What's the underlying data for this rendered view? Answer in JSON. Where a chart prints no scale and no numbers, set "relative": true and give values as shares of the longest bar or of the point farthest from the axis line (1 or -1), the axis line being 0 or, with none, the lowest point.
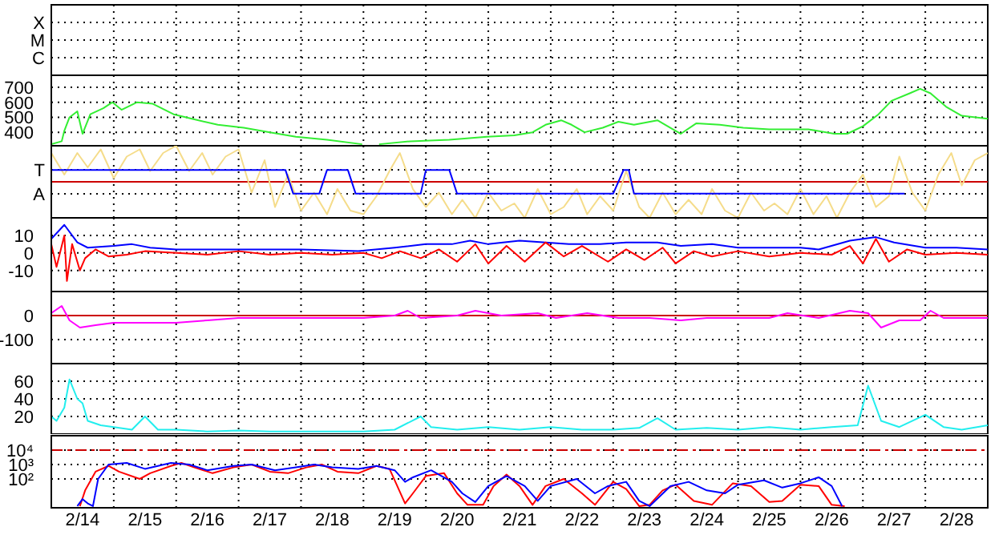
{
  "chart_data": [
    {
      "type": "other",
      "annotations": [
        "X",
        "M",
        "C"
      ]
    },
    {
      "type": "line",
      "xlim": [
        "--02-14",
        "--03-01"
      ],
      "xticks": [
        {
          "value": "--02-14T12:00",
          "label": "2/14"
        },
        {
          "value": "--02-15",
          "label": null
        },
        {
          "value": "--02-15T12:00",
          "label": "2/15"
        },
        {
          "value": "--02-16",
          "label": null
        },
        {
          "value": "--02-16T12:00",
          "label": "2/16"
        },
        {
          "value": "--02-17",
          "label": null
        },
        {
          "value": "--02-17T12:00",
          "label": "2/17"
        },
        {
          "value": "--02-18",
          "label": null
        },
        {
          "value": "--02-18T12:00",
          "label": "2/18"
        },
        {
          "value": "--02-19",
          "label": null
        },
        {
          "value": "--02-19T12:00",
          "label": "2/19"
        },
        {
          "value": "--02-20",
          "label": null
        },
        {
          "value": "--02-20T12:00",
          "label": "2/20"
        },
        {
          "value": "--02-21",
          "label": null
        },
        {
          "value": "--02-21T12:00",
          "label": "2/21"
        },
        {
          "value": "--02-22",
          "label": null
        },
        {
          "value": "--02-22T12:00",
          "label": "2/22"
        },
        {
          "value": "--02-23",
          "label": null
        },
        {
          "value": "--02-23T12:00",
          "label": "2/23"
        },
        {
          "value": "--02-24",
          "label": null
        },
        {
          "value": "--02-24T12:00",
          "label": "2/24"
        },
        {
          "value": "--02-25",
          "label": null
        },
        {
          "value": "--02-25T12:00",
          "label": "2/25"
        },
        {
          "value": "--02-26",
          "label": null
        },
        {
          "value": "--02-26T12:00",
          "label": "2/26"
        },
        {
          "value": "--02-27",
          "label": null
        },
        {
          "value": "--02-27T12:00",
          "label": "2/27"
        },
        {
          "value": "--02-28",
          "label": null
        },
        {
          "value": "--02-28T12:00",
          "label": "2/28"
        }
      ],
      "ylim": [
        310,
        780
      ],
      "yticks": [
        400,
        500,
        600,
        700
      ],
      "grid": true,
      "tick_labels": "y",
      "marker": "none",
      "series": [
        {
          "color": "#33ee33",
          "x": [
            "--02-14T00:00",
            "--02-14T04:00",
            "--02-14T05:00",
            "--02-14T07:00",
            "--02-14T10:00",
            "--02-14T12:00",
            "--02-14T15:00",
            "--02-14T20:00",
            "--02-14T23:30",
            "--02-15T03:00",
            "--02-15T09:00",
            "--02-15T15:00",
            "--02-15T23:00",
            "--02-16T06:00",
            "--02-16T16:00",
            "--02-17T02:00",
            "--02-17T12:00",
            "--02-17T22:00",
            "--02-18T10:00",
            "--02-18T23:30",
            "--02-19T02:00",
            "--02-19T06:00",
            "--02-19T18:00",
            "--02-20T09:00",
            "--02-20T23:30",
            "--02-21T10:00",
            "--02-21T17:00",
            "--02-21T22:00",
            "--02-22T04:00",
            "--02-22T08:00",
            "--02-22T13:00",
            "--02-22T20:00",
            "--02-23T02:00",
            "--02-23T08:00",
            "--02-23T17:00",
            "--02-23T22:00",
            "--02-24T02:00",
            "--02-24T08:00",
            "--02-24T17:00",
            "--02-25T02:00",
            "--02-25T12:00",
            "--02-26T03:00",
            "--02-26T13:00",
            "--02-26T18:00",
            "--02-27T00:00",
            "--02-27T06:00",
            "--02-27T11:00",
            "--02-27T18:00",
            "--02-27T22:00",
            "--02-28T02:00",
            "--02-28T08:00",
            "--02-28T14:00",
            "--03-01T00:00"
          ],
          "values": [
            320,
            340,
            410,
            500,
            540,
            390,
            520,
            560,
            600,
            550,
            600,
            590,
            520,
            490,
            450,
            430,
            400,
            370,
            350,
            320,
            null,
            320,
            340,
            350,
            370,
            380,
            400,
            450,
            480,
            450,
            400,
            430,
            470,
            450,
            480,
            430,
            390,
            460,
            450,
            430,
            420,
            420,
            390,
            390,
            440,
            520,
            610,
            660,
            690,
            660,
            570,
            510,
            490
          ]
        }
      ]
    },
    {
      "type": "line",
      "relative": true,
      "xlim": [
        "--02-14",
        "--03-01"
      ],
      "xticks": [
        {
          "value": "--02-14T12:00",
          "label": "2/14"
        },
        {
          "value": "--02-15",
          "label": null
        },
        {
          "value": "--02-15T12:00",
          "label": "2/15"
        },
        {
          "value": "--02-16",
          "label": null
        },
        {
          "value": "--02-16T12:00",
          "label": "2/16"
        },
        {
          "value": "--02-17",
          "label": null
        },
        {
          "value": "--02-17T12:00",
          "label": "2/17"
        },
        {
          "value": "--02-18",
          "label": null
        },
        {
          "value": "--02-18T12:00",
          "label": "2/18"
        },
        {
          "value": "--02-19",
          "label": null
        },
        {
          "value": "--02-19T12:00",
          "label": "2/19"
        },
        {
          "value": "--02-20",
          "label": null
        },
        {
          "value": "--02-20T12:00",
          "label": "2/20"
        },
        {
          "value": "--02-21",
          "label": null
        },
        {
          "value": "--02-21T12:00",
          "label": "2/21"
        },
        {
          "value": "--02-22",
          "label": null
        },
        {
          "value": "--02-22T12:00",
          "label": "2/22"
        },
        {
          "value": "--02-23",
          "label": null
        },
        {
          "value": "--02-23T12:00",
          "label": "2/23"
        },
        {
          "value": "--02-24",
          "label": null
        },
        {
          "value": "--02-24T12:00",
          "label": "2/24"
        },
        {
          "value": "--02-25",
          "label": null
        },
        {
          "value": "--02-25T12:00",
          "label": "2/25"
        },
        {
          "value": "--02-26",
          "label": null
        },
        {
          "value": "--02-26T12:00",
          "label": "2/26"
        },
        {
          "value": "--02-27",
          "label": null
        },
        {
          "value": "--02-27T12:00",
          "label": "2/27"
        },
        {
          "value": "--02-28",
          "label": null
        },
        {
          "value": "--02-28T12:00",
          "label": "2/28"
        }
      ],
      "grid": true,
      "tick_labels": false,
      "marker": "none",
      "annotations": [
        "T",
        "A"
      ],
      "ref_lines": [
        {
          "axis": "y",
          "value": 0,
          "color": "#cc0000"
        }
      ],
      "series": [
        {
          "color": "#f5dc8a",
          "x": [
            "--02-14T00:00",
            "--02-14T05:00",
            "--02-14T10:00",
            "--02-14T14:00",
            "--02-14T19:00",
            "--02-15T00:00",
            "--02-15T05:00",
            "--02-15T10:00",
            "--02-15T14:00",
            "--02-15T19:00",
            "--02-16T00:00",
            "--02-16T05:00",
            "--02-16T10:00",
            "--02-16T14:00",
            "--02-16T19:00",
            "--02-17T00:00",
            "--02-17T05:00",
            "--02-17T10:00",
            "--02-17T14:00",
            "--02-17T19:00",
            "--02-18T00:00",
            "--02-18T05:00",
            "--02-18T10:00",
            "--02-18T14:00",
            "--02-18T19:00",
            "--02-19T00:00",
            "--02-19T05:00",
            "--02-19T10:00",
            "--02-19T14:00",
            "--02-19T19:00",
            "--02-20T00:00",
            "--02-20T05:00",
            "--02-20T10:00",
            "--02-20T14:00",
            "--02-20T19:00",
            "--02-21T00:00",
            "--02-21T05:00",
            "--02-21T10:00",
            "--02-21T14:00",
            "--02-21T19:00",
            "--02-22T00:00",
            "--02-22T05:00",
            "--02-22T10:00",
            "--02-22T14:00",
            "--02-22T19:00",
            "--02-23T00:00",
            "--02-23T05:00",
            "--02-23T10:00",
            "--02-23T14:00",
            "--02-23T19:00",
            "--02-24T00:00",
            "--02-24T05:00",
            "--02-24T10:00",
            "--02-24T14:00",
            "--02-24T19:00",
            "--02-25T00:00",
            "--02-25T05:00",
            "--02-25T10:00",
            "--02-25T14:00",
            "--02-25T19:00",
            "--02-26T00:00",
            "--02-26T05:00",
            "--02-26T10:00",
            "--02-26T14:00",
            "--02-26T19:00",
            "--02-27T00:00",
            "--02-27T05:00",
            "--02-27T10:00",
            "--02-27T14:00",
            "--02-27T19:00",
            "--02-28T00:00",
            "--02-28T05:00",
            "--02-28T10:00",
            "--02-28T14:00",
            "--02-28T19:00",
            "--03-01T00:00"
          ],
          "values": [
            0.8,
            0.2,
            0.8,
            0.4,
            0.9,
            0.1,
            0.7,
            0.9,
            0.3,
            0.8,
            1,
            0.3,
            0.8,
            0.2,
            0.7,
            0.9,
            -0.3,
            0.6,
            -0.7,
            0.2,
            -0.8,
            -0.3,
            -0.9,
            -0.2,
            -0.8,
            -0.9,
            -0.4,
            0.3,
            0.8,
            -0.2,
            -0.7,
            -0.3,
            -0.9,
            -0.5,
            -1,
            -0.3,
            -0.8,
            -0.6,
            -1,
            -0.2,
            -0.9,
            -0.7,
            -0.2,
            -0.9,
            -0.4,
            -0.8,
            0.3,
            -0.7,
            -1,
            -0.3,
            -0.9,
            -0.5,
            -0.9,
            -0.2,
            -0.8,
            -1,
            -0.3,
            -0.8,
            -0.6,
            -0.9,
            -0.2,
            -0.9,
            -0.4,
            -1,
            -0.3,
            0.2,
            -0.7,
            -0.4,
            0.7,
            -0.3,
            -0.8,
            0.2,
            0.8,
            -0.1,
            0.6,
            0.8
          ]
        },
        {
          "color": "#0000ff",
          "x": [
            "--02-14T00:00",
            "--02-17T18:00",
            "--02-17T21:00",
            "--02-18T07:00",
            "--02-18T10:00",
            "--02-18T18:00",
            "--02-18T21:00",
            "--02-19T22:00",
            "--02-20T00:00",
            "--02-20T09:00",
            "--02-20T12:00",
            "--02-23T00:00",
            "--02-23T04:00",
            "--02-23T06:00",
            "--02-23T08:00",
            "--02-27T16:00"
          ],
          "values": [
            0.33,
            0.33,
            -0.33,
            -0.33,
            0.33,
            0.33,
            -0.33,
            -0.33,
            0.33,
            0.33,
            -0.33,
            -0.33,
            0.33,
            0.33,
            -0.33,
            -0.33
          ]
        }
      ]
    },
    {
      "type": "line",
      "xlim": [
        "--02-14",
        "--03-01"
      ],
      "xticks": [
        {
          "value": "--02-14T12:00",
          "label": "2/14"
        },
        {
          "value": "--02-15",
          "label": null
        },
        {
          "value": "--02-15T12:00",
          "label": "2/15"
        },
        {
          "value": "--02-16",
          "label": null
        },
        {
          "value": "--02-16T12:00",
          "label": "2/16"
        },
        {
          "value": "--02-17",
          "label": null
        },
        {
          "value": "--02-17T12:00",
          "label": "2/17"
        },
        {
          "value": "--02-18",
          "label": null
        },
        {
          "value": "--02-18T12:00",
          "label": "2/18"
        },
        {
          "value": "--02-19",
          "label": null
        },
        {
          "value": "--02-19T12:00",
          "label": "2/19"
        },
        {
          "value": "--02-20",
          "label": null
        },
        {
          "value": "--02-20T12:00",
          "label": "2/20"
        },
        {
          "value": "--02-21",
          "label": null
        },
        {
          "value": "--02-21T12:00",
          "label": "2/21"
        },
        {
          "value": "--02-22",
          "label": null
        },
        {
          "value": "--02-22T12:00",
          "label": "2/22"
        },
        {
          "value": "--02-23",
          "label": null
        },
        {
          "value": "--02-23T12:00",
          "label": "2/23"
        },
        {
          "value": "--02-24",
          "label": null
        },
        {
          "value": "--02-24T12:00",
          "label": "2/24"
        },
        {
          "value": "--02-25",
          "label": null
        },
        {
          "value": "--02-25T12:00",
          "label": "2/25"
        },
        {
          "value": "--02-26",
          "label": null
        },
        {
          "value": "--02-26T12:00",
          "label": "2/26"
        },
        {
          "value": "--02-27",
          "label": null
        },
        {
          "value": "--02-27T12:00",
          "label": "2/27"
        },
        {
          "value": "--02-28",
          "label": null
        },
        {
          "value": "--02-28T12:00",
          "label": "2/28"
        }
      ],
      "ylim": [
        -22,
        20
      ],
      "yticks": [
        -10,
        0,
        10
      ],
      "grid": true,
      "tick_labels": "y",
      "marker": "none",
      "series": [
        {
          "color": "#0000ff",
          "x": [
            "--02-14T00:00",
            "--02-14T05:00",
            "--02-14T10:00",
            "--02-14T14:00",
            "--02-15T00:00",
            "--02-15T07:00",
            "--02-15T14:00",
            "--02-16T00:00",
            "--02-17T00:00",
            "--02-18T00:00",
            "--02-18T22:00",
            "--02-19T12:00",
            "--02-20T00:00",
            "--02-20T10:00",
            "--02-20T17:00",
            "--02-21T00:00",
            "--02-21T12:00",
            "--02-21T22:00",
            "--02-22T07:00",
            "--02-22T19:00",
            "--02-23T05:00",
            "--02-23T17:00",
            "--02-24T02:00",
            "--02-24T14:00",
            "--02-25T00:00",
            "--02-25T12:00",
            "--02-26T00:00",
            "--02-26T07:00",
            "--02-26T19:00",
            "--02-27T05:00",
            "--02-27T12:00",
            "--02-28T00:00",
            "--02-28T12:00",
            "--03-01T00:00"
          ],
          "values": [
            8,
            16,
            6,
            3,
            4,
            5,
            3,
            2,
            2,
            2,
            1,
            3,
            5,
            5,
            7,
            5,
            7,
            6,
            5,
            5,
            6,
            6,
            4,
            5,
            3,
            3,
            3,
            2,
            7,
            9,
            6,
            3,
            3,
            2
          ]
        },
        {
          "color": "#ff0000",
          "x": [
            "--02-14T00:00",
            "--02-14T02:00",
            "--02-14T05:00",
            "--02-14T06:00",
            "--02-14T08:00",
            "--02-14T11:00",
            "--02-14T13:00",
            "--02-14T17:00",
            "--02-14T22:00",
            "--02-15T05:00",
            "--02-15T12:00",
            "--02-16T00:00",
            "--02-16T12:00",
            "--02-17T00:00",
            "--02-17T12:00",
            "--02-18T00:00",
            "--02-18T12:00",
            "--02-19T00:00",
            "--02-19T07:00",
            "--02-19T14:00",
            "--02-19T22:00",
            "--02-20T05:00",
            "--02-20T12:00",
            "--02-20T19:00",
            "--02-21T00:00",
            "--02-21T07:00",
            "--02-21T14:00",
            "--02-21T22:00",
            "--02-22T05:00",
            "--02-22T12:00",
            "--02-22T22:00",
            "--02-23T05:00",
            "--02-23T12:00",
            "--02-23T19:00",
            "--02-24T00:00",
            "--02-24T07:00",
            "--02-24T14:00",
            "--02-25T00:00",
            "--02-25T12:00",
            "--02-26T00:00",
            "--02-26T12:00",
            "--02-26T19:00",
            "--02-27T00:00",
            "--02-27T05:00",
            "--02-27T10:00",
            "--02-27T17:00",
            "--02-28T00:00",
            "--02-28T12:00",
            "--03-01T00:00"
          ],
          "values": [
            5,
            -8,
            10,
            -16,
            5,
            -10,
            -3,
            2,
            -2,
            -1,
            1,
            0,
            -1,
            1,
            -1,
            0,
            -1,
            0,
            -3,
            1,
            -3,
            2,
            -5,
            5,
            -6,
            4,
            -5,
            6,
            -2,
            4,
            -5,
            2,
            -4,
            3,
            -6,
            1,
            -2,
            1,
            -2,
            0,
            -1,
            4,
            -6,
            8,
            -5,
            2,
            -1,
            0,
            -1
          ]
        }
      ]
    },
    {
      "type": "line",
      "xlim": [
        "--02-14",
        "--03-01"
      ],
      "xticks": [
        {
          "value": "--02-14T12:00",
          "label": "2/14"
        },
        {
          "value": "--02-15",
          "label": null
        },
        {
          "value": "--02-15T12:00",
          "label": "2/15"
        },
        {
          "value": "--02-16",
          "label": null
        },
        {
          "value": "--02-16T12:00",
          "label": "2/16"
        },
        {
          "value": "--02-17",
          "label": null
        },
        {
          "value": "--02-17T12:00",
          "label": "2/17"
        },
        {
          "value": "--02-18",
          "label": null
        },
        {
          "value": "--02-18T12:00",
          "label": "2/18"
        },
        {
          "value": "--02-19",
          "label": null
        },
        {
          "value": "--02-19T12:00",
          "label": "2/19"
        },
        {
          "value": "--02-20",
          "label": null
        },
        {
          "value": "--02-20T12:00",
          "label": "2/20"
        },
        {
          "value": "--02-21",
          "label": null
        },
        {
          "value": "--02-21T12:00",
          "label": "2/21"
        },
        {
          "value": "--02-22",
          "label": null
        },
        {
          "value": "--02-22T12:00",
          "label": "2/22"
        },
        {
          "value": "--02-23",
          "label": null
        },
        {
          "value": "--02-23T12:00",
          "label": "2/23"
        },
        {
          "value": "--02-24",
          "label": null
        },
        {
          "value": "--02-24T12:00",
          "label": "2/24"
        },
        {
          "value": "--02-25",
          "label": null
        },
        {
          "value": "--02-25T12:00",
          "label": "2/25"
        },
        {
          "value": "--02-26",
          "label": null
        },
        {
          "value": "--02-26T12:00",
          "label": "2/26"
        },
        {
          "value": "--02-27",
          "label": null
        },
        {
          "value": "--02-27T12:00",
          "label": "2/27"
        },
        {
          "value": "--02-28",
          "label": null
        },
        {
          "value": "--02-28T12:00",
          "label": "2/28"
        }
      ],
      "ylim": [
        -200,
        100
      ],
      "yticks": [
        -100,
        0
      ],
      "grid": true,
      "tick_labels": "y",
      "marker": "none",
      "ref_lines": [
        {
          "axis": "y",
          "value": 0,
          "color": "#cc0000"
        }
      ],
      "series": [
        {
          "color": "#ff00ff",
          "x": [
            "--02-14T00:00",
            "--02-14T04:00",
            "--02-14T07:00",
            "--02-14T11:00",
            "--02-14T17:00",
            "--02-15T00:00",
            "--02-15T12:00",
            "--02-16T00:00",
            "--02-16T12:00",
            "--02-17T00:00",
            "--02-17T12:00",
            "--02-18T00:00",
            "--02-18T12:00",
            "--02-19T00:00",
            "--02-19T12:00",
            "--02-19T17:00",
            "--02-19T22:00",
            "--02-20T12:00",
            "--02-20T19:00",
            "--02-21T05:00",
            "--02-21T19:00",
            "--02-22T02:00",
            "--02-22T14:00",
            "--02-23T02:00",
            "--02-23T14:00",
            "--02-24T02:00",
            "--02-24T12:00",
            "--02-25T00:00",
            "--02-25T12:00",
            "--02-25T19:00",
            "--02-26T07:00",
            "--02-26T19:00",
            "--02-27T02:00",
            "--02-27T07:00",
            "--02-27T14:00",
            "--02-27T22:00",
            "--02-28T02:00",
            "--02-28T07:00",
            "--03-01T00:00"
          ],
          "values": [
            10,
            40,
            -20,
            -50,
            -40,
            -30,
            -30,
            -30,
            -20,
            -10,
            -10,
            -10,
            -10,
            -10,
            0,
            20,
            -10,
            0,
            20,
            0,
            10,
            -10,
            10,
            -10,
            -10,
            -20,
            -10,
            -10,
            -10,
            10,
            -10,
            20,
            10,
            -50,
            -20,
            -20,
            20,
            -10,
            -10
          ]
        }
      ]
    },
    {
      "type": "line",
      "xlim": [
        "--02-14",
        "--03-01"
      ],
      "xticks": [
        {
          "value": "--02-14T12:00",
          "label": "2/14"
        },
        {
          "value": "--02-15",
          "label": null
        },
        {
          "value": "--02-15T12:00",
          "label": "2/15"
        },
        {
          "value": "--02-16",
          "label": null
        },
        {
          "value": "--02-16T12:00",
          "label": "2/16"
        },
        {
          "value": "--02-17",
          "label": null
        },
        {
          "value": "--02-17T12:00",
          "label": "2/17"
        },
        {
          "value": "--02-18",
          "label": null
        },
        {
          "value": "--02-18T12:00",
          "label": "2/18"
        },
        {
          "value": "--02-19",
          "label": null
        },
        {
          "value": "--02-19T12:00",
          "label": "2/19"
        },
        {
          "value": "--02-20",
          "label": null
        },
        {
          "value": "--02-20T12:00",
          "label": "2/20"
        },
        {
          "value": "--02-21",
          "label": null
        },
        {
          "value": "--02-21T12:00",
          "label": "2/21"
        },
        {
          "value": "--02-22",
          "label": null
        },
        {
          "value": "--02-22T12:00",
          "label": "2/22"
        },
        {
          "value": "--02-23",
          "label": null
        },
        {
          "value": "--02-23T12:00",
          "label": "2/23"
        },
        {
          "value": "--02-24",
          "label": null
        },
        {
          "value": "--02-24T12:00",
          "label": "2/24"
        },
        {
          "value": "--02-25",
          "label": null
        },
        {
          "value": "--02-25T12:00",
          "label": "2/25"
        },
        {
          "value": "--02-26",
          "label": null
        },
        {
          "value": "--02-26T12:00",
          "label": "2/26"
        },
        {
          "value": "--02-27",
          "label": null
        },
        {
          "value": "--02-27T12:00",
          "label": "2/27"
        },
        {
          "value": "--02-28",
          "label": null
        },
        {
          "value": "--02-28T12:00",
          "label": "2/28"
        }
      ],
      "ylim": [
        0,
        80
      ],
      "yticks": [
        20,
        40,
        60
      ],
      "grid": true,
      "tick_labels": "y",
      "marker": "none",
      "series": [
        {
          "color": "#22eeee",
          "x": [
            "--02-14T00:00",
            "--02-14T02:00",
            "--02-14T05:00",
            "--02-14T07:00",
            "--02-14T10:00",
            "--02-14T12:00",
            "--02-14T14:00",
            "--02-14T19:00",
            "--02-15T00:00",
            "--02-15T07:00",
            "--02-15T12:00",
            "--02-15T17:00",
            "--02-16T00:00",
            "--02-16T12:00",
            "--02-17T00:00",
            "--02-17T12:00",
            "--02-18T00:00",
            "--02-18T12:00",
            "--02-19T00:00",
            "--02-19T12:00",
            "--02-19T22:00",
            "--02-20T02:00",
            "--02-20T12:00",
            "--02-21T00:00",
            "--02-21T12:00",
            "--02-22T00:00",
            "--02-22T12:00",
            "--02-23T00:00",
            "--02-23T10:00",
            "--02-23T17:00",
            "--02-24T00:00",
            "--02-24T12:00",
            "--02-25T00:00",
            "--02-25T12:00",
            "--02-26T00:00",
            "--02-26T12:00",
            "--02-26T22:00",
            "--02-27T02:00",
            "--02-27T07:00",
            "--02-27T14:00",
            "--02-28T00:00",
            "--02-28T07:00",
            "--02-28T14:00",
            "--03-01T00:00"
          ],
          "values": [
            20,
            15,
            30,
            62,
            40,
            35,
            15,
            10,
            8,
            5,
            20,
            5,
            5,
            3,
            4,
            3,
            3,
            3,
            3,
            5,
            20,
            8,
            5,
            8,
            5,
            8,
            5,
            5,
            7,
            18,
            5,
            7,
            5,
            8,
            5,
            8,
            10,
            55,
            15,
            8,
            22,
            8,
            5,
            10
          ]
        }
      ]
    },
    {
      "type": "line",
      "xlim": [
        "--02-14",
        "--03-01"
      ],
      "xticks": [
        {
          "value": "--02-14T12:00",
          "label": "2/14"
        },
        {
          "value": "--02-15",
          "label": null
        },
        {
          "value": "--02-15T12:00",
          "label": "2/15"
        },
        {
          "value": "--02-16",
          "label": null
        },
        {
          "value": "--02-16T12:00",
          "label": "2/16"
        },
        {
          "value": "--02-17",
          "label": null
        },
        {
          "value": "--02-17T12:00",
          "label": "2/17"
        },
        {
          "value": "--02-18",
          "label": null
        },
        {
          "value": "--02-18T12:00",
          "label": "2/18"
        },
        {
          "value": "--02-19",
          "label": null
        },
        {
          "value": "--02-19T12:00",
          "label": "2/19"
        },
        {
          "value": "--02-20",
          "label": null
        },
        {
          "value": "--02-20T12:00",
          "label": "2/20"
        },
        {
          "value": "--02-21",
          "label": null
        },
        {
          "value": "--02-21T12:00",
          "label": "2/21"
        },
        {
          "value": "--02-22",
          "label": null
        },
        {
          "value": "--02-22T12:00",
          "label": "2/22"
        },
        {
          "value": "--02-23",
          "label": null
        },
        {
          "value": "--02-23T12:00",
          "label": "2/23"
        },
        {
          "value": "--02-24",
          "label": null
        },
        {
          "value": "--02-24T12:00",
          "label": "2/24"
        },
        {
          "value": "--02-25",
          "label": null
        },
        {
          "value": "--02-25T12:00",
          "label": "2/25"
        },
        {
          "value": "--02-26",
          "label": null
        },
        {
          "value": "--02-26T12:00",
          "label": "2/26"
        },
        {
          "value": "--02-27",
          "label": null
        },
        {
          "value": "--02-27T12:00",
          "label": "2/27"
        },
        {
          "value": "--02-28",
          "label": null
        },
        {
          "value": "--02-28T12:00",
          "label": "2/28"
        }
      ],
      "ylim": [
        1,
        100000
      ],
      "log": true,
      "yticks": [
        {
          "value": 100,
          "label": "10²"
        },
        {
          "value": 1000,
          "label": "10³"
        },
        {
          "value": 10000,
          "label": "10⁴"
        }
      ],
      "grid": true,
      "marker": "none",
      "ref_lines": [
        {
          "axis": "y",
          "value": 10000,
          "color": "#cc0000",
          "line_style": "dashed"
        }
      ],
      "series": [
        {
          "color": "#ff0000",
          "x": [
            "--02-14T11:00",
            "--02-14T13:00",
            "--02-14T17:00",
            "--02-14T22:00",
            "--02-15T02:00",
            "--02-15T10:00",
            "--02-15T14:00",
            "--02-15T22:00",
            "--02-16T02:00",
            "--02-16T07:00",
            "--02-16T14:00",
            "--02-16T22:00",
            "--02-17T05:00",
            "--02-17T12:00",
            "--02-17T19:00",
            "--02-18T02:00",
            "--02-18T08:00",
            "--02-18T14:00",
            "--02-18T22:00",
            "--02-19T05:00",
            "--02-19T10:00",
            "--02-19T13:00",
            "--02-19T16:00",
            "--02-19T19:00",
            "--02-20T00:00",
            "--02-20T07:00",
            "--02-20T12:00",
            "--02-20T16:00",
            "--02-20T22:00",
            "--02-21T02:00",
            "--02-21T07:00",
            "--02-21T12:00",
            "--02-21T17:00",
            "--02-21T22:00",
            "--02-22T05:00",
            "--02-22T12:00",
            "--02-22T17:00",
            "--02-23T00:00",
            "--02-23T05:00",
            "--02-23T10:00",
            "--02-23T14:00",
            "--02-23T19:00",
            "--02-24T00:00",
            "--02-24T07:00",
            "--02-24T14:00",
            "--02-24T22:00",
            "--02-25T05:00",
            "--02-25T12:00",
            "--02-25T17:00",
            "--02-26T00:00",
            "--02-26T07:00",
            "--02-26T12:00",
            "--02-26T17:00"
          ],
          "values": [
            1.3,
            16,
            320,
            800,
            320,
            100,
            250,
            800,
            1300,
            630,
            250,
            630,
            1000,
            320,
            250,
            630,
            1000,
            320,
            250,
            800,
            500,
            32,
            2,
            10,
            160,
            250,
            10,
            1.6,
            1.6,
            32,
            200,
            32,
            1.6,
            32,
            100,
            10,
            1.6,
            63,
            20,
            1.3,
            1.6,
            16,
            40,
            3,
            1.6,
            50,
            32,
            2.5,
            3,
            40,
            32,
            1.6,
            1.3
          ]
        },
        {
          "color": "#0000ff",
          "x": [
            "--02-14T10:00",
            "--02-14T12:00",
            "--02-14T14:00",
            "--02-14T16:00",
            "--02-14T18:00",
            "--02-14T22:00",
            "--02-15T05:00",
            "--02-15T12:00",
            "--02-15T22:00",
            "--02-16T05:00",
            "--02-16T12:00",
            "--02-16T22:00",
            "--02-17T05:00",
            "--02-17T14:00",
            "--02-17T22:00",
            "--02-18T05:00",
            "--02-18T12:00",
            "--02-18T22:00",
            "--02-19T05:00",
            "--02-19T12:00",
            "--02-19T16:00",
            "--02-19T19:00",
            "--02-20T02:00",
            "--02-20T10:00",
            "--02-20T14:00",
            "--02-20T19:00",
            "--02-21T00:00",
            "--02-21T07:00",
            "--02-21T14:00",
            "--02-21T19:00",
            "--02-22T00:00",
            "--02-22T10:00",
            "--02-22T17:00",
            "--02-22T22:00",
            "--02-23T05:00",
            "--02-23T10:00",
            "--02-23T14:00",
            "--02-23T22:00",
            "--02-24T05:00",
            "--02-24T12:00",
            "--02-24T19:00",
            "--02-25T00:00",
            "--02-25T10:00",
            "--02-25T17:00",
            "--02-26T00:00",
            "--02-26T07:00",
            "--02-26T12:00",
            "--02-26T16:00"
          ],
          "values": [
            1.3,
            4,
            2,
            1.3,
            100,
            1000,
            1300,
            500,
            1300,
            1000,
            400,
            800,
            1000,
            400,
            630,
            1000,
            630,
            500,
            800,
            400,
            63,
            130,
            400,
            63,
            10,
            2.5,
            32,
            160,
            32,
            3,
            32,
            100,
            10,
            32,
            63,
            3,
            1.3,
            32,
            63,
            16,
            10,
            40,
            80,
            25,
            50,
            130,
            32,
            1.3
          ]
        }
      ]
    }
  ]
}
